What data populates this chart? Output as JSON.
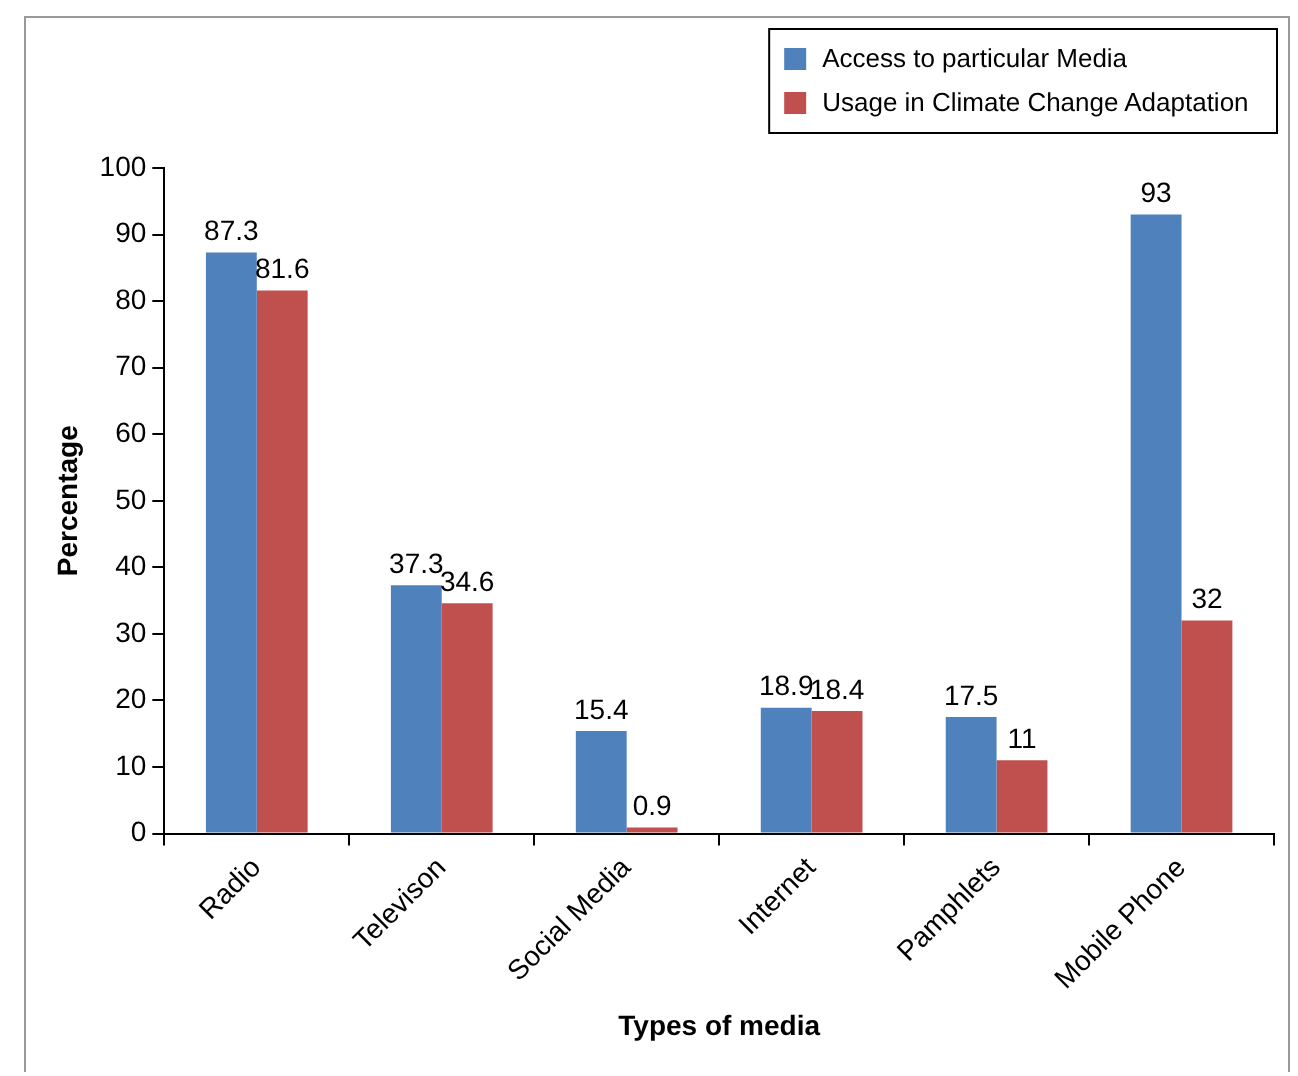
{
  "chart_data": {
    "type": "bar",
    "xlabel": "Types of media",
    "ylabel": "Percentage",
    "categories": [
      "Radio",
      "Televison",
      "Social Media",
      "Internet",
      "Pamphlets",
      "Mobile Phone"
    ],
    "series": [
      {
        "name": "Access to particular Media",
        "color": "#4f81bd",
        "values": [
          87.3,
          37.3,
          15.4,
          18.9,
          17.5,
          93
        ]
      },
      {
        "name": "Usage in Climate Change Adaptation",
        "color": "#c0504d",
        "values": [
          81.6,
          34.6,
          0.9,
          18.4,
          11,
          32
        ]
      }
    ],
    "ylim": [
      0,
      100
    ],
    "yticks": [
      0,
      10,
      20,
      30,
      40,
      50,
      60,
      70,
      80,
      90,
      100
    ],
    "grid": false,
    "legend": "top right",
    "data_labels": true
  }
}
